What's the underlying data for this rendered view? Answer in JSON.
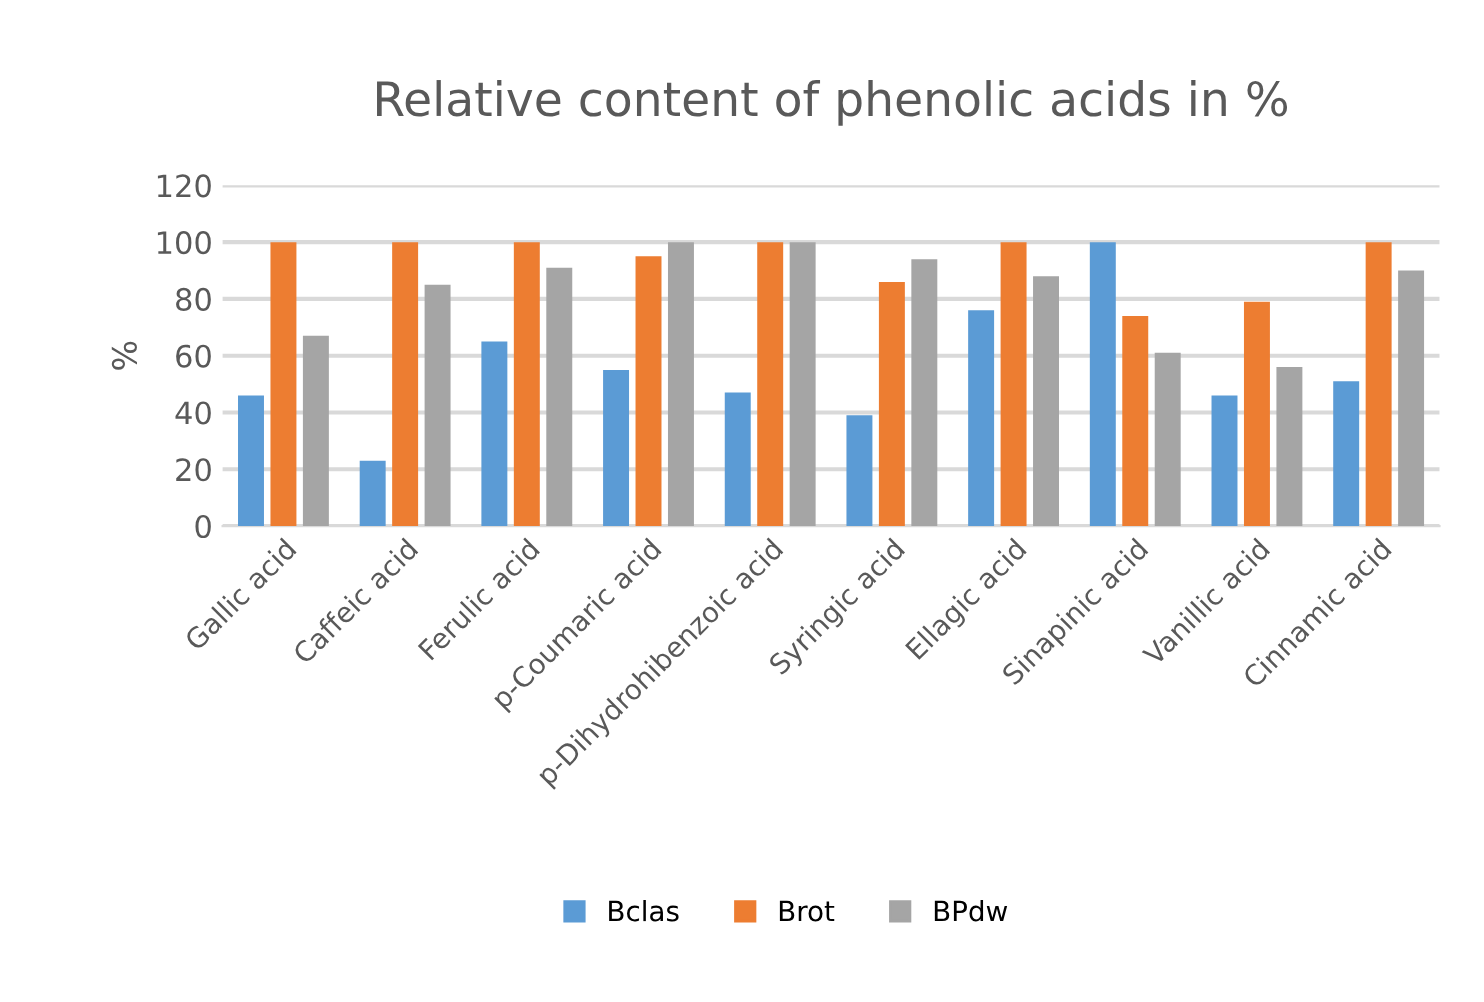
{
  "chart_data": {
    "type": "bar",
    "title": "Relative content of phenolic acids in %",
    "ylabel": "%",
    "categories": [
      "Gallic acid",
      "Caffeic acid",
      "Ferulic acid",
      "p-Coumaric acid",
      "p-Dihydrohibenzoic acid",
      "Syringic acid",
      "Ellagic acid",
      "Sinapinic acid",
      "Vanillic acid",
      "Cinnamic acid"
    ],
    "series": [
      {
        "name": "Bclas",
        "color": "#5b9bd5",
        "values": [
          46,
          23,
          65,
          55,
          47,
          39,
          76,
          100,
          46,
          51
        ]
      },
      {
        "name": "Brot",
        "color": "#ed7d31",
        "values": [
          100,
          100,
          100,
          95,
          100,
          86,
          100,
          74,
          79,
          100
        ]
      },
      {
        "name": "BPdw",
        "color": "#a5a5a5",
        "values": [
          67,
          85,
          91,
          100,
          100,
          94,
          88,
          61,
          56,
          90
        ]
      }
    ],
    "ylim": [
      0,
      120
    ],
    "yticks": [
      0,
      20,
      40,
      60,
      80,
      100,
      120
    ],
    "grid": "y",
    "legend": "bottom"
  }
}
